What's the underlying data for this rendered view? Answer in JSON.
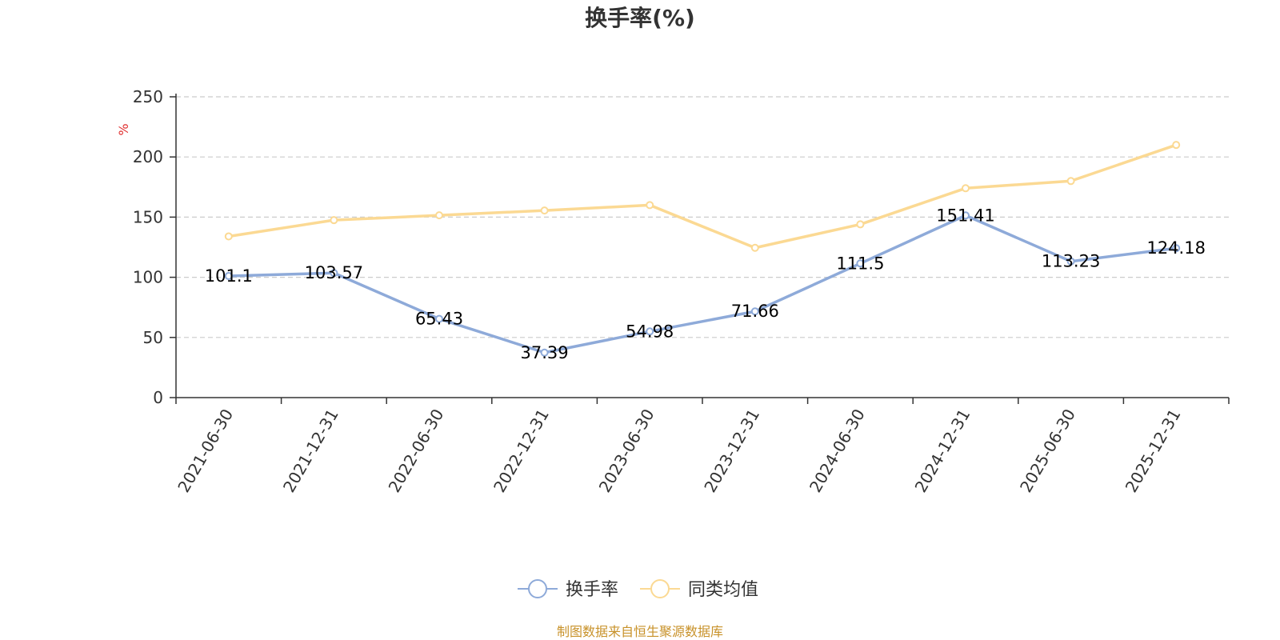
{
  "chart_data": {
    "type": "line",
    "title": "换手率(%)",
    "ylabel": "%",
    "ylim": [
      0,
      250
    ],
    "yticks": [
      0,
      50,
      100,
      150,
      200,
      250
    ],
    "grid": true,
    "categories": [
      "2021-06-30",
      "2021-12-31",
      "2022-06-30",
      "2022-12-31",
      "2023-06-30",
      "2023-12-31",
      "2024-06-30",
      "2024-12-31",
      "2025-06-30",
      "2025-12-31"
    ],
    "series": [
      {
        "name": "换手率",
        "color": "#8eaad9",
        "values": [
          101.1,
          103.57,
          65.43,
          37.39,
          54.98,
          71.66,
          111.5,
          151.41,
          113.23,
          124.18
        ],
        "labels": [
          "101.1",
          "103.57",
          "65.43",
          "37.39",
          "54.98",
          "71.66",
          "111.5",
          "151.41",
          "113.23",
          "124.18"
        ]
      },
      {
        "name": "同类均值",
        "color": "#fbd993",
        "values": [
          134,
          147.5,
          151.5,
          155.5,
          160,
          124.5,
          144,
          174,
          180,
          210
        ]
      }
    ],
    "legend_position": "bottom-center",
    "source": "制图数据来自恒生聚源数据库",
    "source_color": "#c8922a",
    "ylabel_color": "#e03030"
  }
}
